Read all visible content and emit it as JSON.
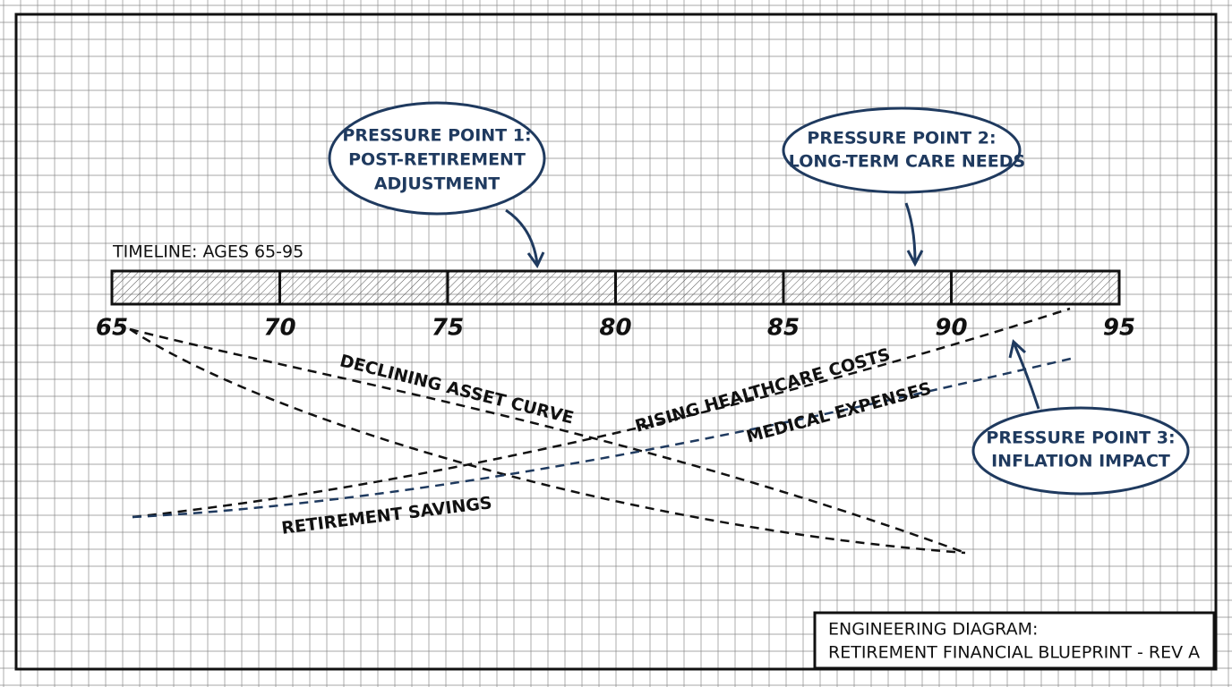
{
  "timeline": {
    "label": "TIMELINE: AGES 65-95",
    "ticks": [
      65,
      70,
      75,
      80,
      85,
      90,
      95
    ]
  },
  "pressure_points": [
    {
      "lines": [
        "PRESSURE POINT 1:",
        "POST-RETIREMENT",
        "ADJUSTMENT"
      ]
    },
    {
      "lines": [
        "PRESSURE POINT 2:",
        "LONG-TERM CARE NEEDS"
      ]
    },
    {
      "lines": [
        "PRESSURE POINT 3:",
        "INFLATION IMPACT"
      ]
    }
  ],
  "curves": [
    "DECLINING ASSET CURVE",
    "RISING HEALTHCARE COSTS",
    "MEDICAL EXPENSES",
    "RETIREMENT SAVINGS"
  ],
  "title_block": {
    "lines": [
      "ENGINEERING DIAGRAM:",
      "RETIREMENT FINANCIAL BLUEPRINT - REV A"
    ]
  }
}
